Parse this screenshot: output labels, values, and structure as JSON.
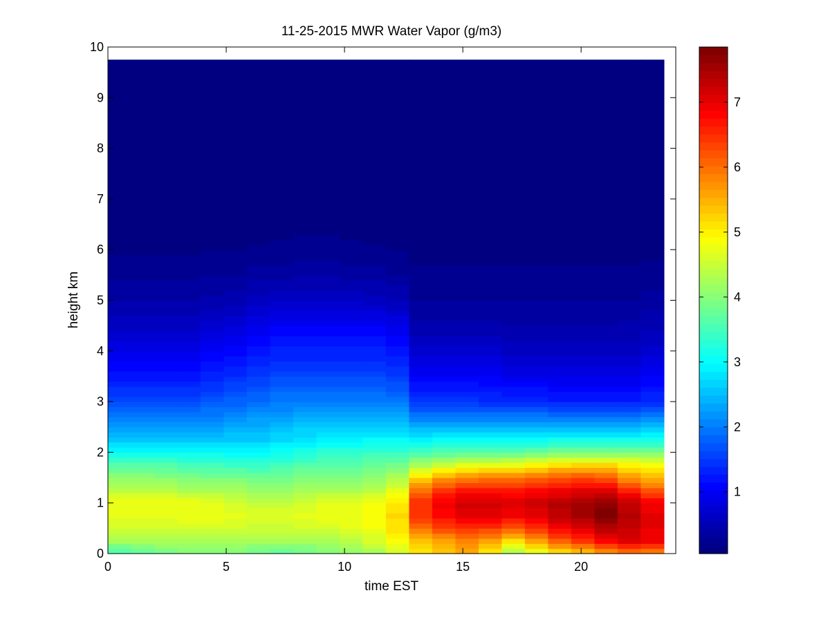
{
  "chart_data": {
    "type": "heatmap",
    "title": "11-25-2015 MWR Water Vapor (g/m3)",
    "xlabel": "time EST",
    "ylabel": "height km",
    "xlim": [
      0,
      24
    ],
    "ylim": [
      0,
      10
    ],
    "x_ticks": [
      0,
      5,
      10,
      15,
      20
    ],
    "y_ticks": [
      0,
      1,
      2,
      3,
      4,
      5,
      6,
      7,
      8,
      9,
      10
    ],
    "colorbar": {
      "colormap": "jet",
      "min": 0.05,
      "max": 7.85,
      "ticks": [
        1,
        2,
        3,
        4,
        5,
        6,
        7
      ],
      "placement": "right"
    },
    "grid": false,
    "time_hours": [
      0,
      1,
      2,
      3,
      4,
      5,
      6,
      7,
      8,
      9,
      10,
      11,
      12,
      13,
      14,
      15,
      16,
      17,
      18,
      19,
      20,
      21,
      22,
      23
    ],
    "time_range": [
      0,
      23.5
    ],
    "height_range": [
      0,
      9.75
    ],
    "profiles": [
      {
        "height_km": 0.0,
        "values": [
          3.5,
          3.7,
          3.8,
          3.9,
          3.9,
          3.9,
          3.8,
          3.7,
          3.8,
          3.9,
          4.0,
          4.2,
          4.5,
          5.0,
          5.3,
          5.5,
          5.0,
          4.2,
          4.6,
          5.0,
          5.2,
          5.6,
          5.8,
          5.8
        ]
      },
      {
        "height_km": 0.25,
        "values": [
          4.2,
          4.2,
          4.3,
          4.3,
          4.3,
          4.3,
          4.2,
          4.2,
          4.2,
          4.3,
          4.4,
          4.6,
          4.9,
          5.4,
          5.6,
          5.8,
          5.6,
          5.1,
          5.6,
          6.1,
          6.4,
          6.8,
          7.0,
          6.9
        ]
      },
      {
        "height_km": 0.5,
        "values": [
          4.5,
          4.5,
          4.5,
          4.6,
          4.6,
          4.6,
          4.5,
          4.5,
          4.6,
          4.6,
          4.7,
          4.8,
          5.1,
          6.0,
          6.3,
          6.5,
          6.4,
          6.2,
          6.5,
          6.9,
          7.1,
          7.4,
          7.3,
          7.0
        ]
      },
      {
        "height_km": 0.75,
        "values": [
          4.8,
          4.8,
          4.8,
          4.8,
          4.8,
          4.7,
          4.6,
          4.6,
          4.7,
          4.8,
          4.8,
          4.9,
          5.2,
          6.5,
          6.8,
          7.0,
          7.0,
          6.9,
          7.0,
          7.3,
          7.5,
          7.8,
          7.4,
          7.0
        ]
      },
      {
        "height_km": 1.0,
        "values": [
          4.8,
          4.8,
          4.8,
          4.8,
          4.7,
          4.6,
          4.5,
          4.5,
          4.6,
          4.7,
          4.7,
          4.8,
          5.1,
          6.5,
          6.9,
          7.2,
          7.2,
          7.1,
          7.2,
          7.4,
          7.5,
          7.7,
          7.3,
          6.9
        ]
      },
      {
        "height_km": 1.25,
        "values": [
          4.4,
          4.4,
          4.4,
          4.3,
          4.3,
          4.2,
          4.1,
          4.1,
          4.2,
          4.3,
          4.3,
          4.4,
          4.7,
          6.0,
          6.5,
          6.7,
          6.7,
          6.7,
          6.8,
          6.9,
          7.0,
          7.0,
          6.6,
          6.2
        ]
      },
      {
        "height_km": 1.5,
        "values": [
          4.1,
          4.1,
          4.0,
          4.0,
          3.9,
          3.9,
          3.8,
          3.8,
          3.9,
          4.0,
          4.0,
          4.1,
          4.3,
          5.2,
          5.6,
          5.8,
          5.9,
          5.9,
          6.0,
          6.2,
          6.3,
          6.2,
          5.7,
          5.4
        ]
      },
      {
        "height_km": 1.75,
        "values": [
          3.6,
          3.6,
          3.6,
          3.5,
          3.5,
          3.4,
          3.4,
          3.5,
          3.6,
          3.6,
          3.7,
          3.8,
          3.9,
          4.3,
          4.5,
          4.7,
          4.7,
          4.8,
          5.0,
          5.1,
          5.2,
          5.2,
          5.0,
          4.9
        ]
      },
      {
        "height_km": 2.0,
        "values": [
          3.0,
          3.0,
          3.0,
          3.0,
          3.0,
          3.0,
          3.0,
          3.1,
          3.2,
          3.3,
          3.3,
          3.4,
          3.4,
          3.5,
          3.6,
          3.7,
          3.7,
          3.7,
          3.8,
          3.9,
          3.9,
          3.9,
          3.9,
          3.9
        ]
      },
      {
        "height_km": 2.25,
        "values": [
          2.6,
          2.6,
          2.6,
          2.6,
          2.6,
          2.6,
          2.6,
          2.7,
          2.8,
          2.9,
          2.9,
          3.0,
          3.0,
          2.9,
          3.0,
          3.0,
          3.0,
          3.0,
          3.0,
          3.1,
          3.1,
          3.1,
          3.1,
          3.1
        ]
      },
      {
        "height_km": 2.5,
        "values": [
          2.3,
          2.3,
          2.3,
          2.3,
          2.3,
          2.4,
          2.4,
          2.5,
          2.6,
          2.6,
          2.6,
          2.6,
          2.6,
          2.4,
          2.4,
          2.4,
          2.4,
          2.4,
          2.4,
          2.4,
          2.4,
          2.4,
          2.4,
          2.5
        ]
      },
      {
        "height_km": 2.75,
        "values": [
          1.9,
          1.9,
          1.9,
          1.9,
          2.0,
          2.1,
          2.2,
          2.2,
          2.3,
          2.3,
          2.3,
          2.3,
          2.3,
          1.9,
          1.9,
          1.9,
          1.9,
          1.9,
          1.9,
          1.8,
          1.8,
          1.8,
          1.8,
          1.9
        ]
      },
      {
        "height_km": 3.0,
        "values": [
          1.6,
          1.6,
          1.6,
          1.6,
          1.7,
          1.8,
          1.9,
          2.0,
          2.0,
          2.0,
          2.0,
          2.0,
          2.0,
          1.5,
          1.5,
          1.5,
          1.4,
          1.4,
          1.4,
          1.3,
          1.3,
          1.3,
          1.3,
          1.4
        ]
      },
      {
        "height_km": 3.5,
        "values": [
          1.2,
          1.2,
          1.2,
          1.2,
          1.3,
          1.4,
          1.5,
          1.6,
          1.6,
          1.6,
          1.6,
          1.6,
          1.5,
          1.0,
          1.0,
          1.0,
          1.0,
          0.9,
          0.9,
          0.9,
          0.9,
          0.9,
          0.9,
          1.0
        ]
      },
      {
        "height_km": 4.0,
        "values": [
          0.9,
          0.9,
          0.9,
          0.9,
          1.0,
          1.1,
          1.2,
          1.3,
          1.3,
          1.3,
          1.3,
          1.3,
          1.2,
          0.7,
          0.7,
          0.7,
          0.7,
          0.6,
          0.6,
          0.6,
          0.6,
          0.6,
          0.6,
          0.7
        ]
      },
      {
        "height_km": 4.5,
        "values": [
          0.6,
          0.6,
          0.6,
          0.6,
          0.7,
          0.8,
          0.9,
          1.0,
          1.0,
          1.0,
          1.0,
          1.0,
          0.9,
          0.45,
          0.45,
          0.45,
          0.45,
          0.4,
          0.4,
          0.4,
          0.4,
          0.4,
          0.45,
          0.5
        ]
      },
      {
        "height_km": 5.0,
        "values": [
          0.4,
          0.4,
          0.4,
          0.4,
          0.45,
          0.5,
          0.6,
          0.65,
          0.65,
          0.65,
          0.65,
          0.6,
          0.55,
          0.3,
          0.3,
          0.3,
          0.3,
          0.3,
          0.3,
          0.3,
          0.3,
          0.3,
          0.3,
          0.35
        ]
      },
      {
        "height_km": 5.5,
        "values": [
          0.25,
          0.25,
          0.25,
          0.25,
          0.28,
          0.3,
          0.35,
          0.38,
          0.4,
          0.4,
          0.38,
          0.35,
          0.3,
          0.2,
          0.2,
          0.2,
          0.2,
          0.2,
          0.2,
          0.2,
          0.2,
          0.2,
          0.2,
          0.22
        ]
      },
      {
        "height_km": 6.0,
        "values": [
          0.15,
          0.15,
          0.15,
          0.15,
          0.16,
          0.17,
          0.18,
          0.19,
          0.2,
          0.2,
          0.19,
          0.18,
          0.17,
          0.14,
          0.14,
          0.14,
          0.14,
          0.14,
          0.14,
          0.14,
          0.14,
          0.14,
          0.14,
          0.14
        ]
      },
      {
        "height_km": 7.0,
        "values": [
          0.1,
          0.1,
          0.1,
          0.1,
          0.1,
          0.1,
          0.1,
          0.1,
          0.1,
          0.1,
          0.1,
          0.1,
          0.1,
          0.1,
          0.1,
          0.1,
          0.1,
          0.1,
          0.1,
          0.1,
          0.1,
          0.1,
          0.1,
          0.1
        ]
      },
      {
        "height_km": 9.75,
        "values": [
          0.05,
          0.05,
          0.05,
          0.05,
          0.05,
          0.05,
          0.05,
          0.05,
          0.05,
          0.05,
          0.05,
          0.05,
          0.05,
          0.05,
          0.05,
          0.05,
          0.05,
          0.05,
          0.05,
          0.05,
          0.05,
          0.05,
          0.05,
          0.05
        ]
      }
    ]
  }
}
